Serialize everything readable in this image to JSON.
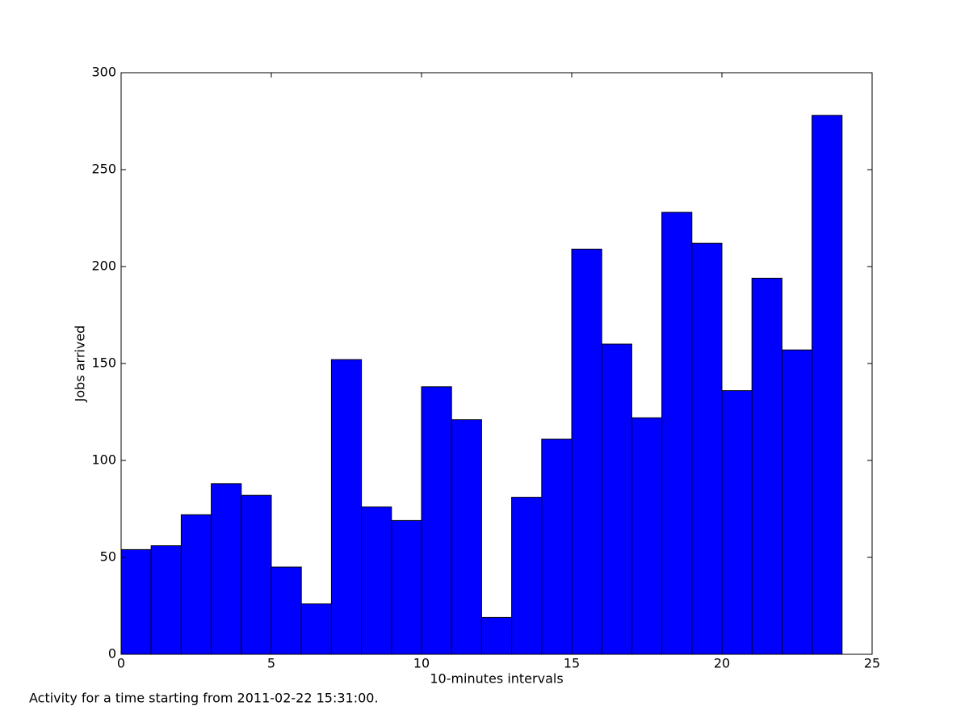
{
  "chart_data": {
    "type": "histogram",
    "xlabel": "10-minutes intervals",
    "ylabel": "Jobs arrived",
    "footnote": "Activity for a time starting from 2011-02-22 15:31:00.",
    "bins": [
      0,
      1,
      2,
      3,
      4,
      5,
      6,
      7,
      8,
      9,
      10,
      11,
      12,
      13,
      14,
      15,
      16,
      17,
      18,
      19,
      20,
      21,
      22,
      23,
      24
    ],
    "values": [
      54,
      56,
      72,
      88,
      82,
      45,
      26,
      152,
      76,
      69,
      138,
      121,
      19,
      81,
      111,
      209,
      160,
      122,
      228,
      212,
      136,
      194,
      157,
      278
    ],
    "color": "#0000ff",
    "xlim": [
      0,
      25
    ],
    "xticks": [
      0,
      5,
      10,
      15,
      20,
      25
    ],
    "ylim": [
      0,
      300
    ],
    "yticks": [
      0,
      50,
      100,
      150,
      200,
      250,
      300
    ],
    "grid": false
  }
}
